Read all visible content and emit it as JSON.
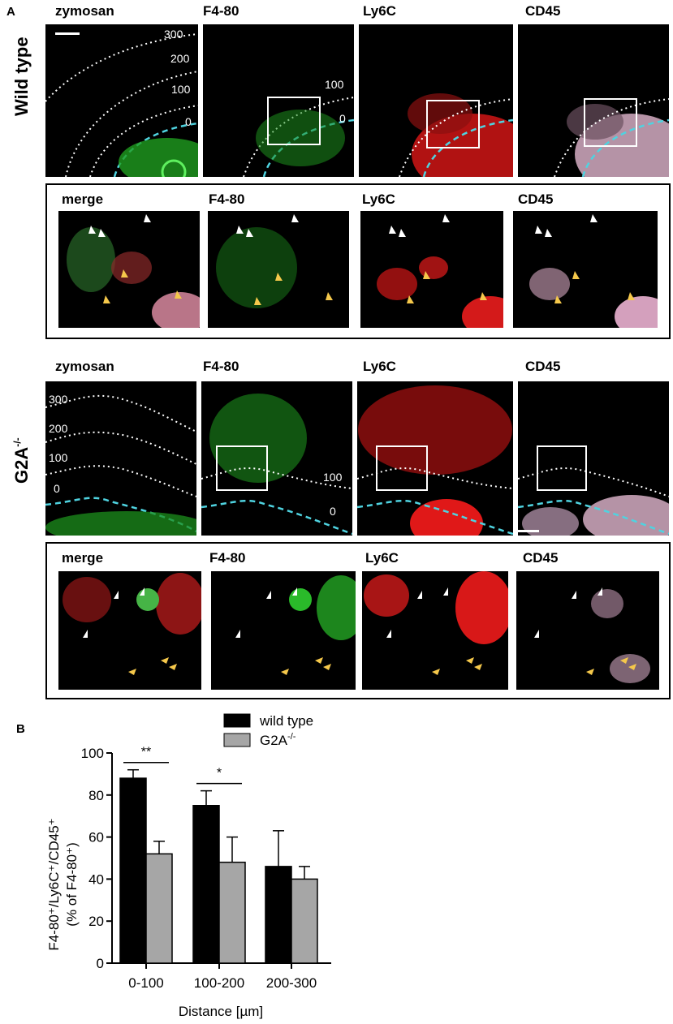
{
  "figure": {
    "panel_a_letter": "A",
    "panel_b_letter": "B"
  },
  "row1": {
    "group_label": "Wild type",
    "top_labels": [
      "zymosan",
      "F4-80",
      "Ly6C",
      "CD45"
    ],
    "zoom_labels": [
      "merge",
      "F4-80",
      "Ly6C",
      "CD45"
    ],
    "contour_labels": [
      "300",
      "200",
      "100",
      "0"
    ],
    "f480_contour_labels": [
      "100",
      "0"
    ]
  },
  "row2": {
    "group_label": "G2A",
    "group_label_sup": "-/-",
    "top_labels": [
      "zymosan",
      "F4-80",
      "Ly6C",
      "CD45"
    ],
    "zoom_labels": [
      "merge",
      "F4-80",
      "Ly6C",
      "CD45"
    ],
    "contour_labels": [
      "300",
      "200",
      "100",
      "0"
    ],
    "f480_contour_labels": [
      "100",
      "0"
    ]
  },
  "colors": {
    "zymosan": "#22c322",
    "f480": "#22c322",
    "ly6c": "#e01818",
    "cd45": "#e8b4d2",
    "distance_contour": "#ffffff",
    "tissue_border": "#4fd3e0",
    "arrow_white": "#ffffff",
    "arrow_yellow": "#f5c84b",
    "bar_wildtype": "#000000",
    "bar_g2a": "#a6a6a6"
  },
  "chart_data": {
    "type": "bar",
    "categories": [
      "0-100",
      "100-200",
      "200-300"
    ],
    "series": [
      {
        "name": "wild type",
        "values": [
          88,
          75,
          46
        ],
        "errors": [
          4,
          7,
          17
        ],
        "color": "#000000"
      },
      {
        "name": "G2A",
        "name_sup": "-/-",
        "values": [
          52,
          48,
          40
        ],
        "errors": [
          6,
          12,
          6
        ],
        "color": "#a6a6a6"
      }
    ],
    "xlabel": "Distance [µm]",
    "ylabel_line1": "F4-80⁺/Ly6C⁺/CD45⁺",
    "ylabel_line2": "(% of F4-80⁺)",
    "ylim": [
      0,
      100
    ],
    "yticks": [
      "0",
      "20",
      "40",
      "60",
      "80",
      "100"
    ],
    "significance": [
      {
        "group": "0-100",
        "text": "**"
      },
      {
        "group": "100-200",
        "text": "*"
      }
    ],
    "legend_position": "top"
  }
}
